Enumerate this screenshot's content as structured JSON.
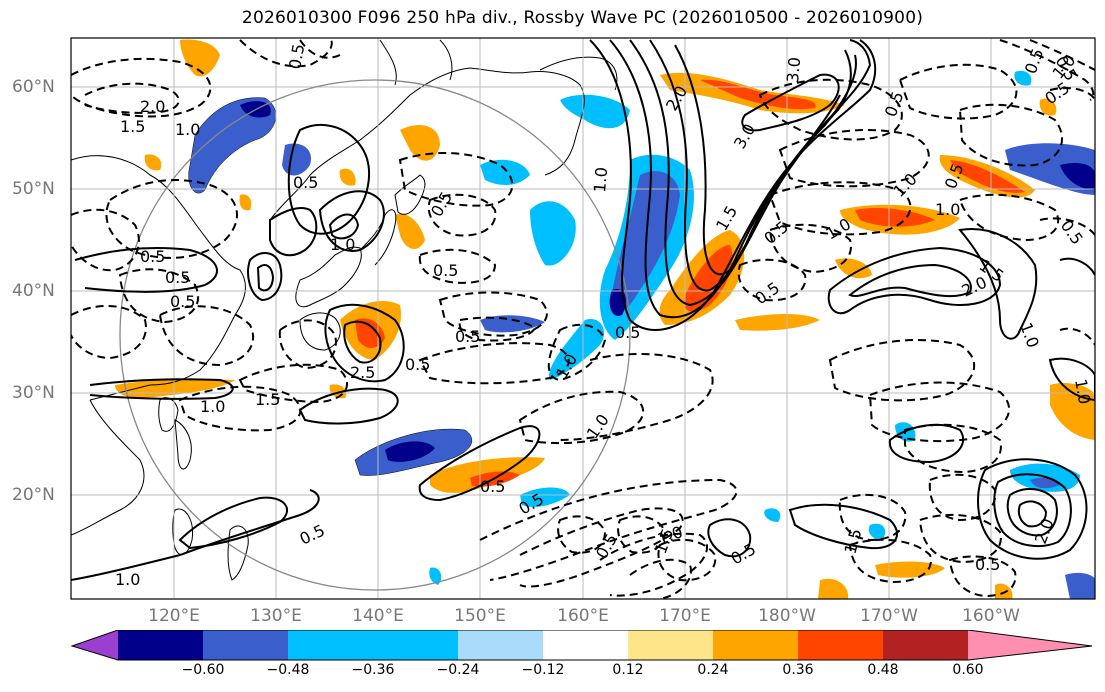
{
  "title": "2026010300 F096 250 hPa div., Rossby Wave PC (2026010500 - 2026010900)",
  "lat_labels": [
    "60°N",
    "50°N",
    "40°N",
    "30°N",
    "20°N"
  ],
  "lon_labels": [
    "120°E",
    "130°E",
    "140°E",
    "150°E",
    "160°E",
    "170°E",
    "180°W",
    "170°W",
    "160°W"
  ],
  "colorbar": {
    "colors": [
      "#9b3fd1",
      "#00008b",
      "#3a5fcd",
      "#00bfff",
      "#a9dcfa",
      "#ffffff",
      "#ffe58a",
      "#ffa500",
      "#ff4500",
      "#b22222",
      "#ff8fb0"
    ],
    "tick_labels": [
      "−0.60",
      "−0.48",
      "−0.36",
      "−0.24",
      "−0.12",
      "0.12",
      "0.24",
      "0.36",
      "0.48",
      "0.60"
    ]
  },
  "contour_labels": [
    "0.5",
    "2.0",
    "1.5",
    "1.0",
    "0.5",
    "0.5",
    "0.5",
    "1.0",
    "0.5",
    "0.5",
    "0.5",
    "2.5",
    "0.5",
    "1.0",
    "0.5",
    "1.5",
    "1.0",
    "0.5",
    "1.0",
    "3.0",
    "3.0",
    "2.0",
    "1.0",
    "1.5",
    "0.5",
    "0.5",
    "1.0",
    "0.5",
    "1.0",
    "0.5",
    "0.5",
    "0.5",
    "0.5",
    "1.0",
    "0.5",
    "1.0",
    "2.0",
    "1.5",
    "1.0",
    "0.5",
    "0.5",
    "0.5",
    "1.5",
    "1.5",
    "0.5",
    "1.0",
    "0.5",
    "2.0",
    "0.5",
    "1.0",
    "1.0"
  ]
}
